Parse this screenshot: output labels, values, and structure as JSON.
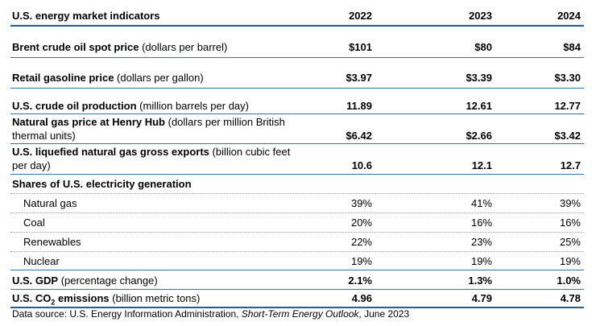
{
  "header": {
    "title": "U.S. energy market indicators",
    "years": [
      "2022",
      "2023",
      "2024"
    ]
  },
  "rows": {
    "brent": {
      "label_bold": "Brent crude oil spot price",
      "label_unit": " (dollars per barrel)",
      "values": [
        "$101",
        "$80",
        "$84"
      ]
    },
    "gasoline": {
      "label_bold": "Retail gasoline price",
      "label_unit": " (dollars per gallon)",
      "values": [
        "$3.97",
        "$3.39",
        "$3.30"
      ]
    },
    "crude_production": {
      "label_bold": "U.S. crude oil production",
      "label_unit": " (million barrels per day)",
      "values": [
        "11.89",
        "12.61",
        "12.77"
      ]
    },
    "henry_hub": {
      "label_bold": "Natural gas price at Henry Hub",
      "label_unit_1": " (dollars per million British",
      "label_unit_2": "thermal units)",
      "values": [
        "$6.42",
        "$2.66",
        "$3.42"
      ]
    },
    "lng_exports": {
      "label_bold": "U.S. liquefied natural gas gross exports",
      "label_unit_1": " (billion cubic feet",
      "label_unit_2": "per day)",
      "values": [
        "10.6",
        "12.1",
        "12.7"
      ]
    },
    "electricity_header": {
      "label": "Shares of U.S. electricity generation"
    },
    "natural_gas": {
      "label": "Natural gas",
      "values": [
        "39%",
        "41%",
        "39%"
      ]
    },
    "coal": {
      "label": "Coal",
      "values": [
        "20%",
        "16%",
        "16%"
      ]
    },
    "renewables": {
      "label": "Renewables",
      "values": [
        "22%",
        "23%",
        "25%"
      ]
    },
    "nuclear": {
      "label": "Nuclear",
      "values": [
        "19%",
        "19%",
        "19%"
      ]
    },
    "gdp": {
      "label_bold": "U.S. GDP",
      "label_unit": " (percentage change)",
      "values": [
        "2.1%",
        "1.3%",
        "1.0%"
      ]
    },
    "co2": {
      "label_bold_prefix": "U.S. CO",
      "label_bold_sub": "2",
      "label_bold_suffix": " emissions",
      "label_unit": " (billion metric tons)",
      "values": [
        "4.96",
        "4.79",
        "4.78"
      ]
    }
  },
  "source": {
    "prefix": "Data source: U.S. Energy Information Administration, ",
    "italic": "Short-Term Energy Outlook",
    "suffix": ", June 2023"
  }
}
